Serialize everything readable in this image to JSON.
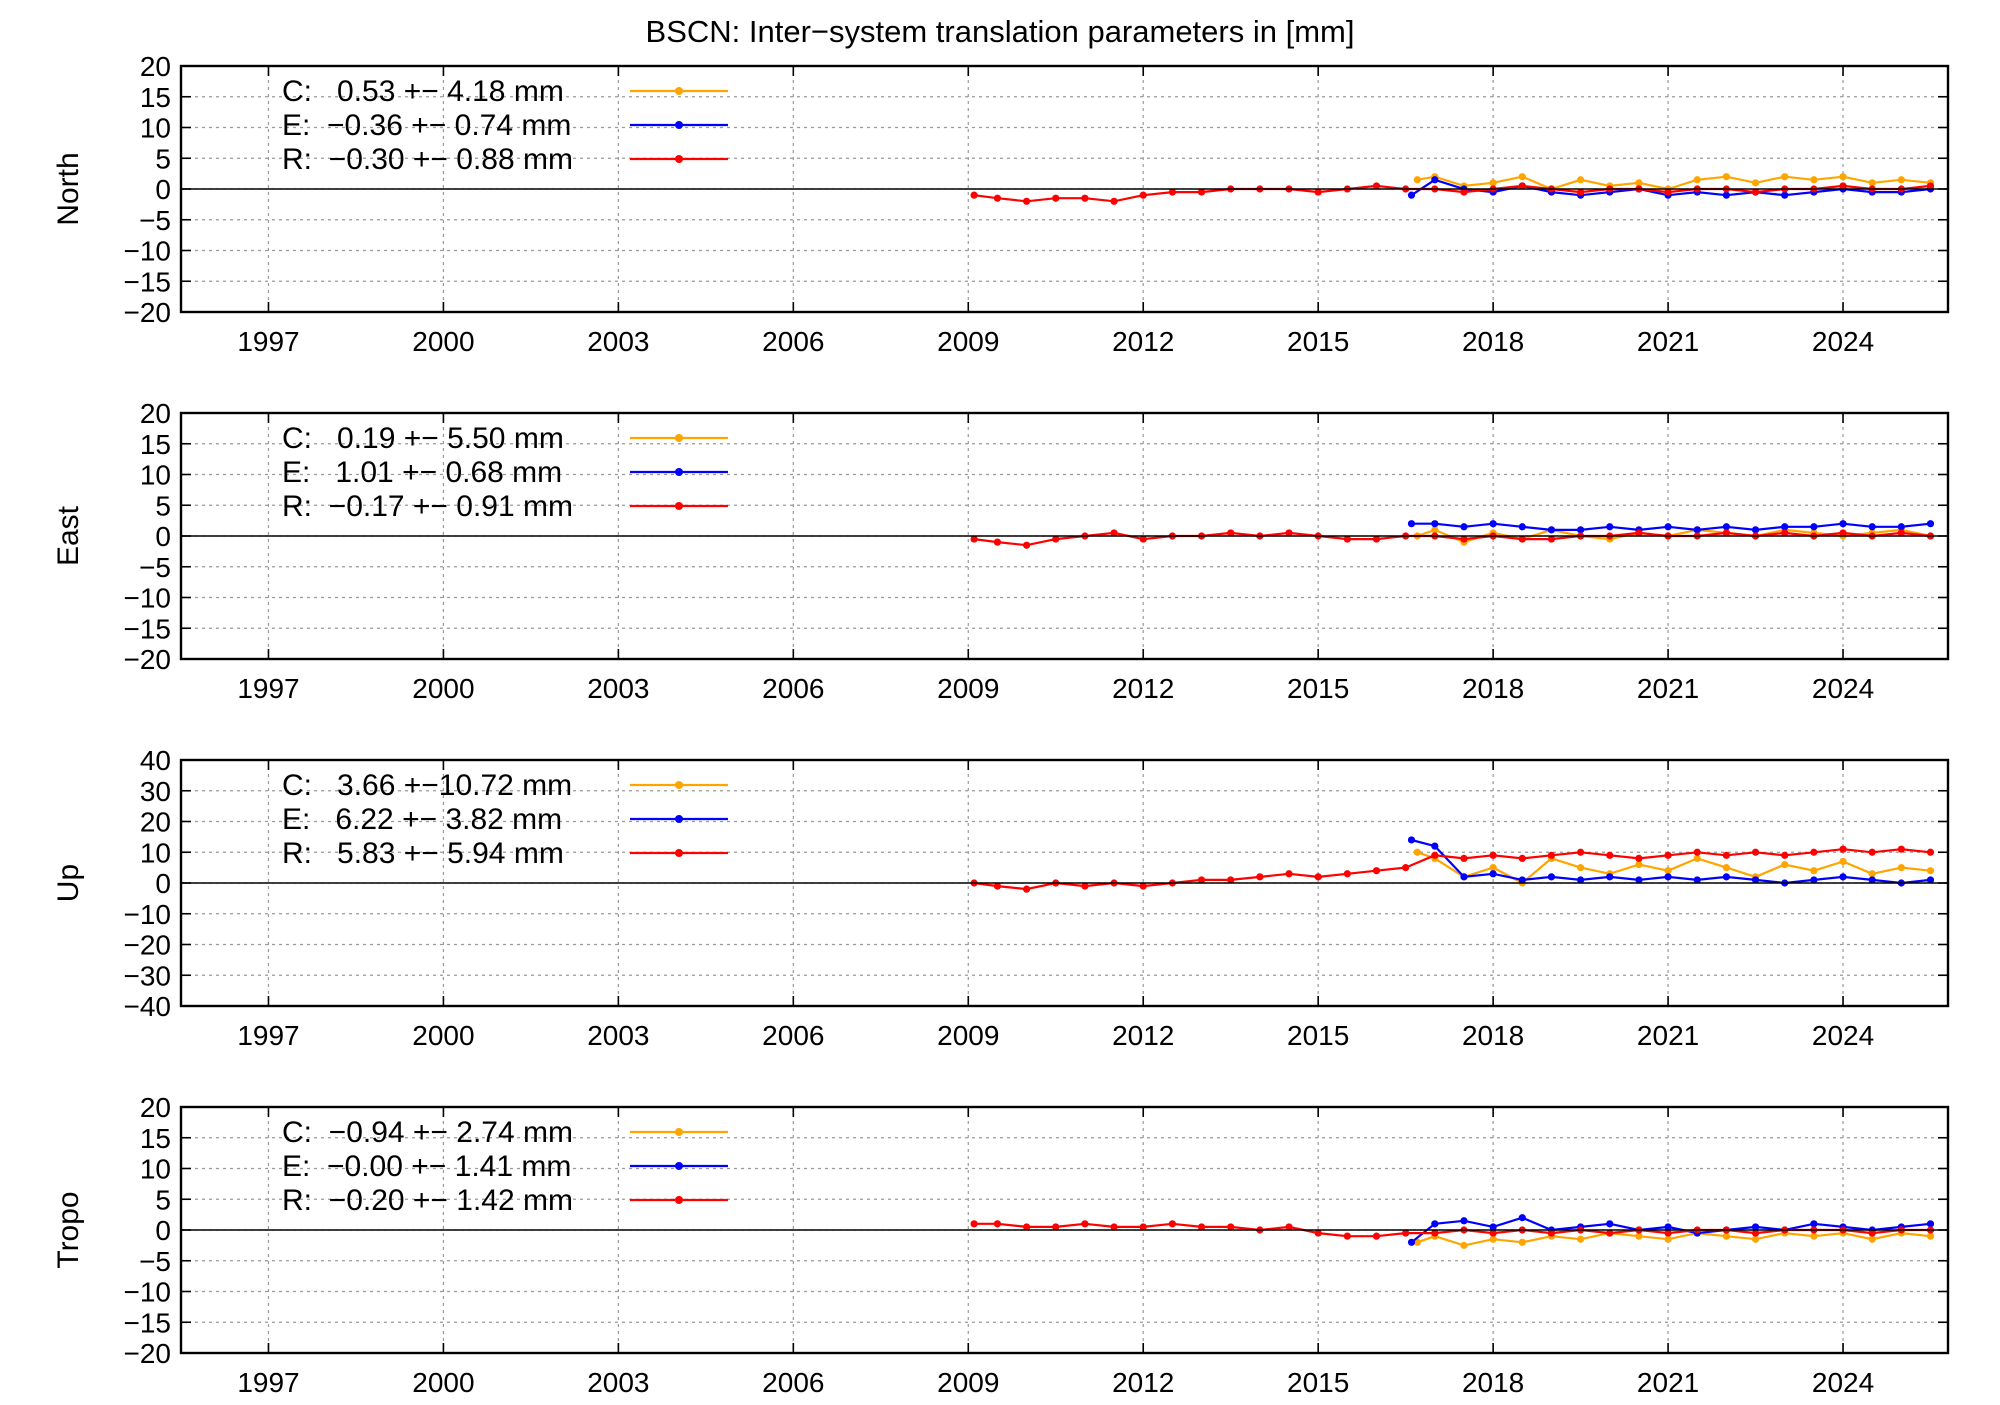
{
  "title": "BSCN: Inter−system translation parameters in [mm]",
  "colors": {
    "C": "#ffa500",
    "E": "#0000ff",
    "R": "#ff0000",
    "zero_line": "#000000",
    "grid": "#9a9a9a"
  },
  "chart_data": [
    {
      "type": "line",
      "ylabel": "North",
      "xlim": [
        1995.5,
        2025.8
      ],
      "ylim": [
        -20,
        20
      ],
      "xticks": [
        1997,
        2000,
        2003,
        2006,
        2009,
        2012,
        2015,
        2018,
        2021,
        2024
      ],
      "yticks": [
        -20,
        -15,
        -10,
        -5,
        0,
        5,
        10,
        15,
        20
      ],
      "grid": true,
      "legend_position": "top-left",
      "legend": [
        {
          "key": "C",
          "text": "C:   0.53 +− 4.18 mm"
        },
        {
          "key": "E",
          "text": "E:  −0.36 +− 0.74 mm"
        },
        {
          "key": "R",
          "text": "R:  −0.30 +− 0.88 mm"
        }
      ],
      "series": [
        {
          "name": "C",
          "x": [
            2016.7,
            2017.0,
            2017.5,
            2018.0,
            2018.5,
            2019.0,
            2019.5,
            2020.0,
            2020.5,
            2021.0,
            2021.5,
            2022.0,
            2022.5,
            2023.0,
            2023.5,
            2024.0,
            2024.5,
            2025.0,
            2025.5
          ],
          "y": [
            1.5,
            2.0,
            0.5,
            1.0,
            2.0,
            0.0,
            1.5,
            0.5,
            1.0,
            0.0,
            1.5,
            2.0,
            1.0,
            2.0,
            1.5,
            2.0,
            1.0,
            1.5,
            1.0
          ]
        },
        {
          "name": "E",
          "x": [
            2016.6,
            2017.0,
            2017.5,
            2018.0,
            2018.5,
            2019.0,
            2019.5,
            2020.0,
            2020.5,
            2021.0,
            2021.5,
            2022.0,
            2022.5,
            2023.0,
            2023.5,
            2024.0,
            2024.5,
            2025.0,
            2025.5
          ],
          "y": [
            -1.0,
            1.5,
            0.0,
            -0.5,
            0.5,
            -0.5,
            -1.0,
            -0.5,
            0.0,
            -1.0,
            -0.5,
            -1.0,
            -0.5,
            -1.0,
            -0.5,
            0.0,
            -0.5,
            -0.5,
            0.0
          ]
        },
        {
          "name": "R",
          "x": [
            2009.1,
            2009.5,
            2010.0,
            2010.5,
            2011.0,
            2011.5,
            2012.0,
            2012.5,
            2013.0,
            2013.5,
            2014.0,
            2014.5,
            2015.0,
            2015.5,
            2016.0,
            2016.5,
            2017.0,
            2017.5,
            2018.0,
            2018.5,
            2019.0,
            2019.5,
            2020.0,
            2020.5,
            2021.0,
            2021.5,
            2022.0,
            2022.5,
            2023.0,
            2023.5,
            2024.0,
            2024.5,
            2025.0,
            2025.5
          ],
          "y": [
            -1.0,
            -1.5,
            -2.0,
            -1.5,
            -1.5,
            -2.0,
            -1.0,
            -0.5,
            -0.5,
            0.0,
            0.0,
            0.0,
            -0.5,
            0.0,
            0.5,
            0.0,
            0.0,
            -0.5,
            0.0,
            0.5,
            0.0,
            -0.5,
            0.0,
            0.0,
            -0.5,
            0.0,
            0.0,
            -0.5,
            0.0,
            0.0,
            0.5,
            0.0,
            0.0,
            0.5
          ]
        }
      ]
    },
    {
      "type": "line",
      "ylabel": "East",
      "xlim": [
        1995.5,
        2025.8
      ],
      "ylim": [
        -20,
        20
      ],
      "xticks": [
        1997,
        2000,
        2003,
        2006,
        2009,
        2012,
        2015,
        2018,
        2021,
        2024
      ],
      "yticks": [
        -20,
        -15,
        -10,
        -5,
        0,
        5,
        10,
        15,
        20
      ],
      "grid": true,
      "legend_position": "top-left",
      "legend": [
        {
          "key": "C",
          "text": "C:   0.19 +− 5.50 mm"
        },
        {
          "key": "E",
          "text": "E:   1.01 +− 0.68 mm"
        },
        {
          "key": "R",
          "text": "R:  −0.17 +− 0.91 mm"
        }
      ],
      "series": [
        {
          "name": "C",
          "x": [
            2016.7,
            2017.0,
            2017.5,
            2018.0,
            2018.5,
            2019.0,
            2019.5,
            2020.0,
            2020.5,
            2021.0,
            2021.5,
            2022.0,
            2022.5,
            2023.0,
            2023.5,
            2024.0,
            2024.5,
            2025.0,
            2025.5
          ],
          "y": [
            0.0,
            1.0,
            -1.0,
            0.5,
            -0.5,
            1.0,
            0.0,
            -0.5,
            0.5,
            0.0,
            1.0,
            0.5,
            0.0,
            1.0,
            0.5,
            0.0,
            0.5,
            1.0,
            0.0
          ]
        },
        {
          "name": "E",
          "x": [
            2016.6,
            2017.0,
            2017.5,
            2018.0,
            2018.5,
            2019.0,
            2019.5,
            2020.0,
            2020.5,
            2021.0,
            2021.5,
            2022.0,
            2022.5,
            2023.0,
            2023.5,
            2024.0,
            2024.5,
            2025.0,
            2025.5
          ],
          "y": [
            2.0,
            2.0,
            1.5,
            2.0,
            1.5,
            1.0,
            1.0,
            1.5,
            1.0,
            1.5,
            1.0,
            1.5,
            1.0,
            1.5,
            1.5,
            2.0,
            1.5,
            1.5,
            2.0
          ]
        },
        {
          "name": "R",
          "x": [
            2009.1,
            2009.5,
            2010.0,
            2010.5,
            2011.0,
            2011.5,
            2012.0,
            2012.5,
            2013.0,
            2013.5,
            2014.0,
            2014.5,
            2015.0,
            2015.5,
            2016.0,
            2016.5,
            2017.0,
            2017.5,
            2018.0,
            2018.5,
            2019.0,
            2019.5,
            2020.0,
            2020.5,
            2021.0,
            2021.5,
            2022.0,
            2022.5,
            2023.0,
            2023.5,
            2024.0,
            2024.5,
            2025.0,
            2025.5
          ],
          "y": [
            -0.5,
            -1.0,
            -1.5,
            -0.5,
            0.0,
            0.5,
            -0.5,
            0.0,
            0.0,
            0.5,
            0.0,
            0.5,
            0.0,
            -0.5,
            -0.5,
            0.0,
            0.0,
            -0.5,
            0.0,
            -0.5,
            -0.5,
            0.0,
            0.0,
            0.5,
            0.0,
            0.0,
            0.5,
            0.0,
            0.5,
            0.0,
            0.5,
            0.0,
            0.5,
            0.0
          ]
        }
      ]
    },
    {
      "type": "line",
      "ylabel": "Up",
      "xlim": [
        1995.5,
        2025.8
      ],
      "ylim": [
        -40,
        40
      ],
      "xticks": [
        1997,
        2000,
        2003,
        2006,
        2009,
        2012,
        2015,
        2018,
        2021,
        2024
      ],
      "yticks": [
        -40,
        -30,
        -20,
        -10,
        0,
        10,
        20,
        30,
        40
      ],
      "grid": true,
      "legend_position": "top-left",
      "legend": [
        {
          "key": "C",
          "text": "C:   3.66 +−10.72 mm"
        },
        {
          "key": "E",
          "text": "E:   6.22 +− 3.82 mm"
        },
        {
          "key": "R",
          "text": "R:   5.83 +− 5.94 mm"
        }
      ],
      "series": [
        {
          "name": "C",
          "x": [
            2016.7,
            2017.0,
            2017.5,
            2018.0,
            2018.5,
            2019.0,
            2019.5,
            2020.0,
            2020.5,
            2021.0,
            2021.5,
            2022.0,
            2022.5,
            2023.0,
            2023.5,
            2024.0,
            2024.5,
            2025.0,
            2025.5
          ],
          "y": [
            10.0,
            8.0,
            2.0,
            5.0,
            0.0,
            8.0,
            5.0,
            3.0,
            6.0,
            4.0,
            8.0,
            5.0,
            2.0,
            6.0,
            4.0,
            7.0,
            3.0,
            5.0,
            4.0
          ]
        },
        {
          "name": "E",
          "x": [
            2016.6,
            2017.0,
            2017.5,
            2018.0,
            2018.5,
            2019.0,
            2019.5,
            2020.0,
            2020.5,
            2021.0,
            2021.5,
            2022.0,
            2022.5,
            2023.0,
            2023.5,
            2024.0,
            2024.5,
            2025.0,
            2025.5
          ],
          "y": [
            14.0,
            12.0,
            2.0,
            3.0,
            1.0,
            2.0,
            1.0,
            2.0,
            1.0,
            2.0,
            1.0,
            2.0,
            1.0,
            0.0,
            1.0,
            2.0,
            1.0,
            0.0,
            1.0
          ]
        },
        {
          "name": "R",
          "x": [
            2009.1,
            2009.5,
            2010.0,
            2010.5,
            2011.0,
            2011.5,
            2012.0,
            2012.5,
            2013.0,
            2013.5,
            2014.0,
            2014.5,
            2015.0,
            2015.5,
            2016.0,
            2016.5,
            2017.0,
            2017.5,
            2018.0,
            2018.5,
            2019.0,
            2019.5,
            2020.0,
            2020.5,
            2021.0,
            2021.5,
            2022.0,
            2022.5,
            2023.0,
            2023.5,
            2024.0,
            2024.5,
            2025.0,
            2025.5
          ],
          "y": [
            0.0,
            -1.0,
            -2.0,
            0.0,
            -1.0,
            0.0,
            -1.0,
            0.0,
            1.0,
            1.0,
            2.0,
            3.0,
            2.0,
            3.0,
            4.0,
            5.0,
            9.0,
            8.0,
            9.0,
            8.0,
            9.0,
            10.0,
            9.0,
            8.0,
            9.0,
            10.0,
            9.0,
            10.0,
            9.0,
            10.0,
            11.0,
            10.0,
            11.0,
            10.0
          ]
        }
      ]
    },
    {
      "type": "line",
      "ylabel": "Tropo",
      "xlim": [
        1995.5,
        2025.8
      ],
      "ylim": [
        -20,
        20
      ],
      "xticks": [
        1997,
        2000,
        2003,
        2006,
        2009,
        2012,
        2015,
        2018,
        2021,
        2024
      ],
      "yticks": [
        -20,
        -15,
        -10,
        -5,
        0,
        5,
        10,
        15,
        20
      ],
      "grid": true,
      "legend_position": "top-left",
      "legend": [
        {
          "key": "C",
          "text": "C:  −0.94 +− 2.74 mm"
        },
        {
          "key": "E",
          "text": "E:  −0.00 +− 1.41 mm"
        },
        {
          "key": "R",
          "text": "R:  −0.20 +− 1.42 mm"
        }
      ],
      "series": [
        {
          "name": "C",
          "x": [
            2016.7,
            2017.0,
            2017.5,
            2018.0,
            2018.5,
            2019.0,
            2019.5,
            2020.0,
            2020.5,
            2021.0,
            2021.5,
            2022.0,
            2022.5,
            2023.0,
            2023.5,
            2024.0,
            2024.5,
            2025.0,
            2025.5
          ],
          "y": [
            -2.0,
            -1.0,
            -2.5,
            -1.5,
            -2.0,
            -1.0,
            -1.5,
            -0.5,
            -1.0,
            -1.5,
            -0.5,
            -1.0,
            -1.5,
            -0.5,
            -1.0,
            -0.5,
            -1.5,
            -0.5,
            -1.0
          ]
        },
        {
          "name": "E",
          "x": [
            2016.6,
            2017.0,
            2017.5,
            2018.0,
            2018.5,
            2019.0,
            2019.5,
            2020.0,
            2020.5,
            2021.0,
            2021.5,
            2022.0,
            2022.5,
            2023.0,
            2023.5,
            2024.0,
            2024.5,
            2025.0,
            2025.5
          ],
          "y": [
            -2.0,
            1.0,
            1.5,
            0.5,
            2.0,
            0.0,
            0.5,
            1.0,
            0.0,
            0.5,
            -0.5,
            0.0,
            0.5,
            0.0,
            1.0,
            0.5,
            0.0,
            0.5,
            1.0
          ]
        },
        {
          "name": "R",
          "x": [
            2009.1,
            2009.5,
            2010.0,
            2010.5,
            2011.0,
            2011.5,
            2012.0,
            2012.5,
            2013.0,
            2013.5,
            2014.0,
            2014.5,
            2015.0,
            2015.5,
            2016.0,
            2016.5,
            2017.0,
            2017.5,
            2018.0,
            2018.5,
            2019.0,
            2019.5,
            2020.0,
            2020.5,
            2021.0,
            2021.5,
            2022.0,
            2022.5,
            2023.0,
            2023.5,
            2024.0,
            2024.5,
            2025.0,
            2025.5
          ],
          "y": [
            1.0,
            1.0,
            0.5,
            0.5,
            1.0,
            0.5,
            0.5,
            1.0,
            0.5,
            0.5,
            0.0,
            0.5,
            -0.5,
            -1.0,
            -1.0,
            -0.5,
            -0.5,
            0.0,
            -0.5,
            0.0,
            -0.5,
            0.0,
            -0.5,
            0.0,
            -0.5,
            0.0,
            0.0,
            -0.5,
            0.0,
            0.0,
            0.0,
            -0.5,
            0.0,
            0.0
          ]
        }
      ]
    }
  ]
}
